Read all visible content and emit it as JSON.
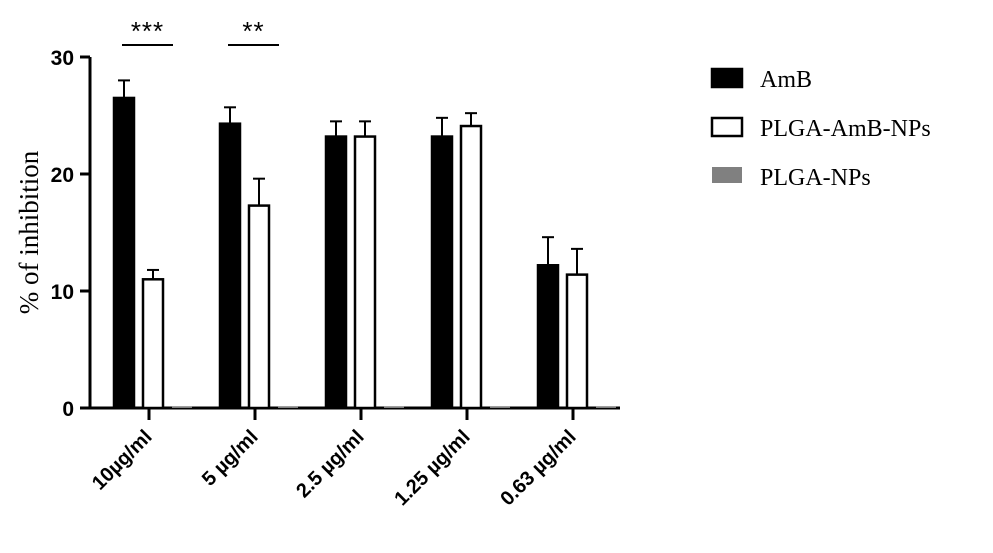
{
  "chart_data": {
    "type": "bar",
    "ylabel": "% of inhibition",
    "xlabel": "",
    "ylim": [
      0,
      30
    ],
    "yticks": [
      0,
      10,
      20,
      30
    ],
    "categories": [
      "10µg/ml",
      "5 µg/ml",
      "2.5 µg/ml",
      "1.25 µg/ml",
      "0.63 µg/ml"
    ],
    "series": [
      {
        "name": "AmB",
        "color": "#000000",
        "fill": "#000000",
        "values": [
          26.5,
          24.3,
          23.2,
          23.2,
          12.2
        ],
        "errors": [
          1.5,
          1.4,
          1.3,
          1.6,
          2.4
        ]
      },
      {
        "name": "PLGA-AmB-NPs",
        "color": "#000000",
        "fill": "#ffffff",
        "values": [
          11.0,
          17.3,
          23.2,
          24.1,
          11.4
        ],
        "errors": [
          0.8,
          2.3,
          1.3,
          1.1,
          2.2
        ]
      },
      {
        "name": "PLGA-NPs",
        "color": "#808080",
        "fill": "#808080",
        "values": [
          0.15,
          0.15,
          0.15,
          0.15,
          0.15
        ],
        "errors": [
          0,
          0,
          0,
          0,
          0
        ]
      }
    ],
    "legend_position": "right",
    "significance": [
      {
        "category_index": 0,
        "label": "***"
      },
      {
        "category_index": 1,
        "label": "**"
      }
    ]
  }
}
